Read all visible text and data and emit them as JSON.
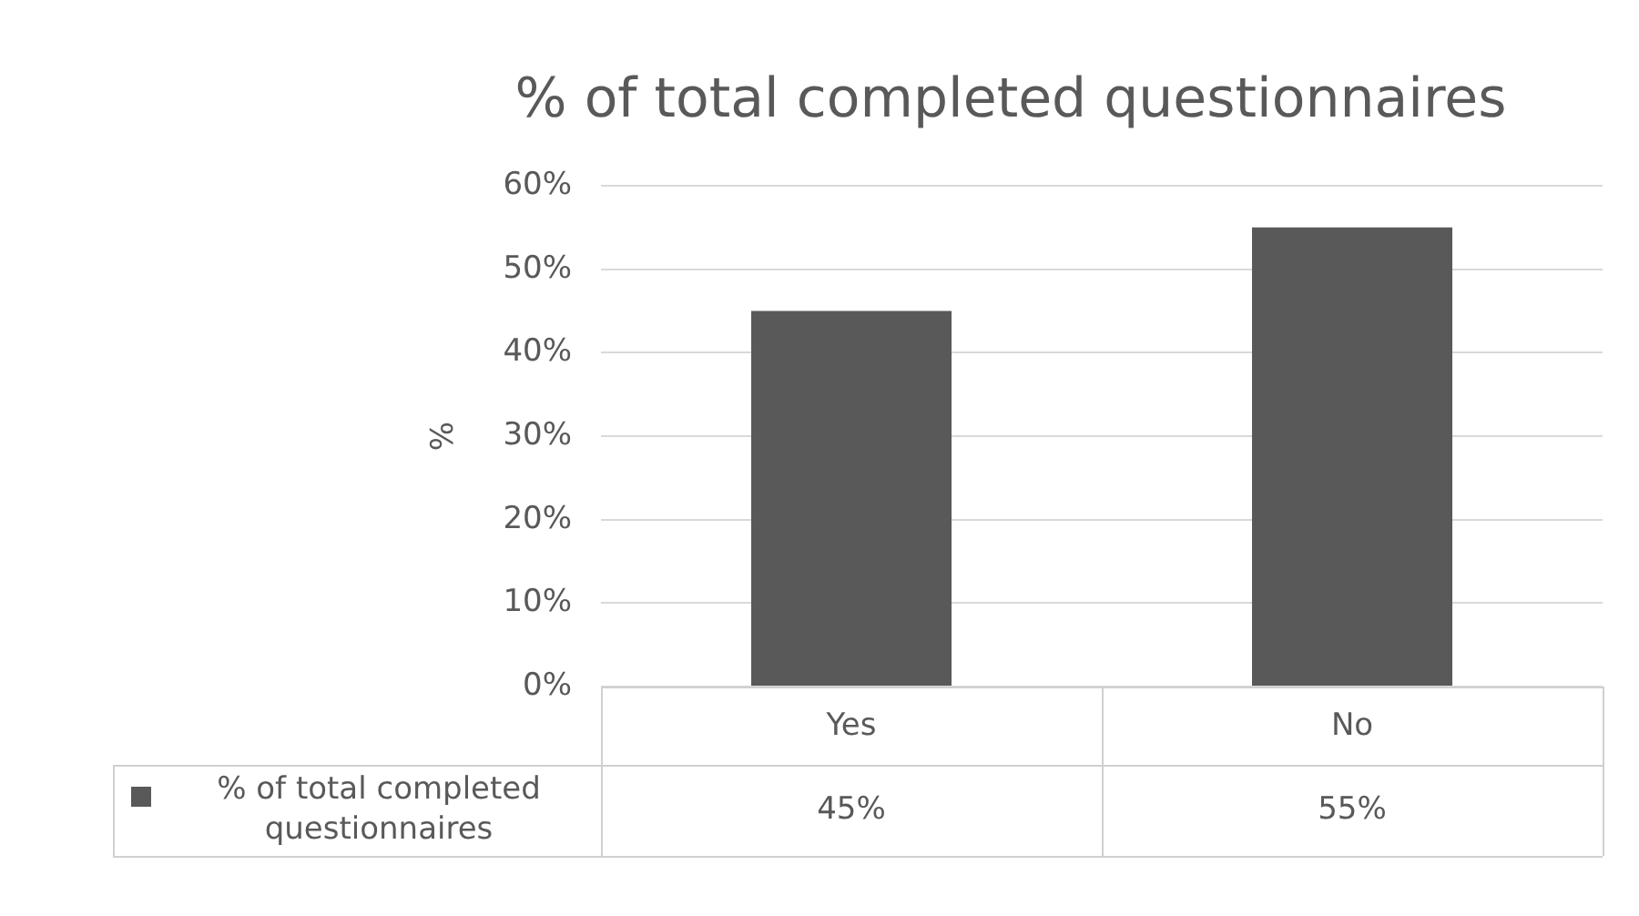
{
  "chart_data": {
    "type": "bar",
    "title": "% of total completed questionnaires",
    "ylabel": "%",
    "categories": [
      "Yes",
      "No"
    ],
    "series": [
      {
        "name": "% of total completed questionnaires",
        "color": "#595959",
        "values": [
          45,
          55
        ],
        "value_labels": [
          "45%",
          "55%"
        ]
      }
    ],
    "ylim": [
      0,
      60
    ],
    "yticks": [
      {
        "value": 0,
        "label": "0%"
      },
      {
        "value": 10,
        "label": "10%"
      },
      {
        "value": 20,
        "label": "20%"
      },
      {
        "value": 30,
        "label": "30%"
      },
      {
        "value": 40,
        "label": "40%"
      },
      {
        "value": 50,
        "label": "50%"
      },
      {
        "value": 60,
        "label": "60%"
      }
    ],
    "grid": "y",
    "legend": "bottom"
  }
}
